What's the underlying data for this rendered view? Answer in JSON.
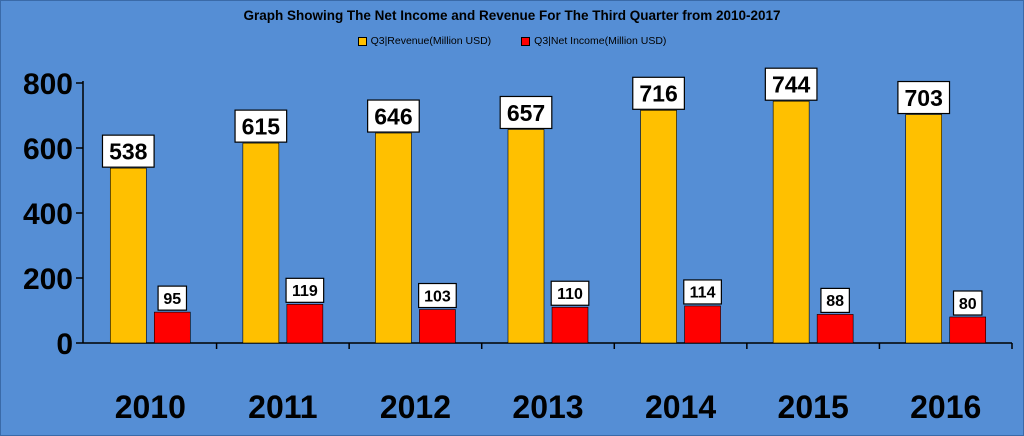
{
  "chart_data": {
    "type": "bar",
    "title": "Graph Showing The Net Income and Revenue For The Third Quarter from 2010-2017",
    "categories": [
      "2010",
      "2011",
      "2012",
      "2013",
      "2014",
      "2015",
      "2016"
    ],
    "series": [
      {
        "name": "Q3|Revenue(Million USD)",
        "values": [
          538,
          615,
          646,
          657,
          716,
          744,
          703
        ],
        "color": "#ffc000"
      },
      {
        "name": "Q3|Net Income(Million USD)",
        "values": [
          95,
          119,
          103,
          110,
          114,
          88,
          80
        ],
        "color": "#ff0000"
      }
    ],
    "y_ticks": [
      "0",
      "200",
      "400",
      "600",
      "800"
    ],
    "ylim": [
      0,
      800
    ],
    "grid": false,
    "legend": "top-center",
    "background_color": "#558ed5"
  }
}
